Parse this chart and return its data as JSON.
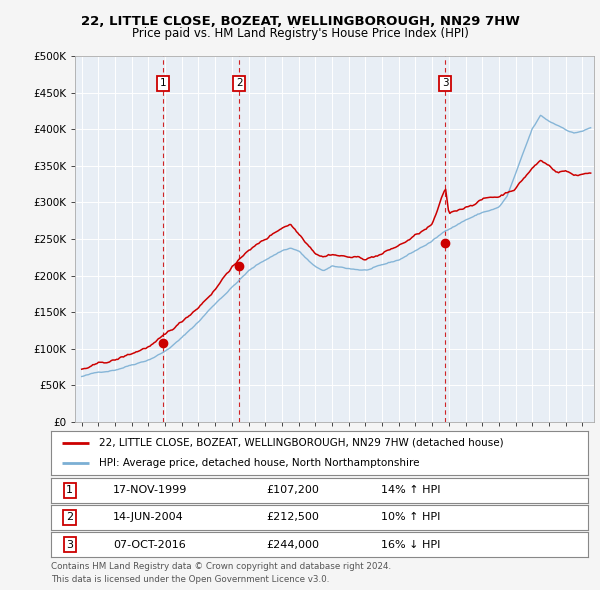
{
  "title1": "22, LITTLE CLOSE, BOZEAT, WELLINGBOROUGH, NN29 7HW",
  "title2": "Price paid vs. HM Land Registry's House Price Index (HPI)",
  "ylim": [
    0,
    500000
  ],
  "yticks": [
    0,
    50000,
    100000,
    150000,
    200000,
    250000,
    300000,
    350000,
    400000,
    450000,
    500000
  ],
  "ytick_labels": [
    "£0",
    "£50K",
    "£100K",
    "£150K",
    "£200K",
    "£250K",
    "£300K",
    "£350K",
    "£400K",
    "£450K",
    "£500K"
  ],
  "background_color": "#f5f5f5",
  "plot_bg_color": "#e8eef5",
  "grid_color": "#ffffff",
  "sale_color": "#cc0000",
  "hpi_color": "#7bafd4",
  "transaction_line_color": "#cc0000",
  "transactions": [
    {
      "label": "1",
      "date_num": 1999.88,
      "price": 107200
    },
    {
      "label": "2",
      "date_num": 2004.45,
      "price": 212500
    },
    {
      "label": "3",
      "date_num": 2016.77,
      "price": 244000
    }
  ],
  "legend_sale_label": "22, LITTLE CLOSE, BOZEAT, WELLINGBOROUGH, NN29 7HW (detached house)",
  "legend_hpi_label": "HPI: Average price, detached house, North Northamptonshire",
  "footer1": "Contains HM Land Registry data © Crown copyright and database right 2024.",
  "footer2": "This data is licensed under the Open Government Licence v3.0.",
  "table_rows": [
    [
      "1",
      "17-NOV-1999",
      "£107,200",
      "14% ↑ HPI"
    ],
    [
      "2",
      "14-JUN-2004",
      "£212,500",
      "10% ↑ HPI"
    ],
    [
      "3",
      "07-OCT-2016",
      "£244,000",
      "16% ↓ HPI"
    ]
  ]
}
